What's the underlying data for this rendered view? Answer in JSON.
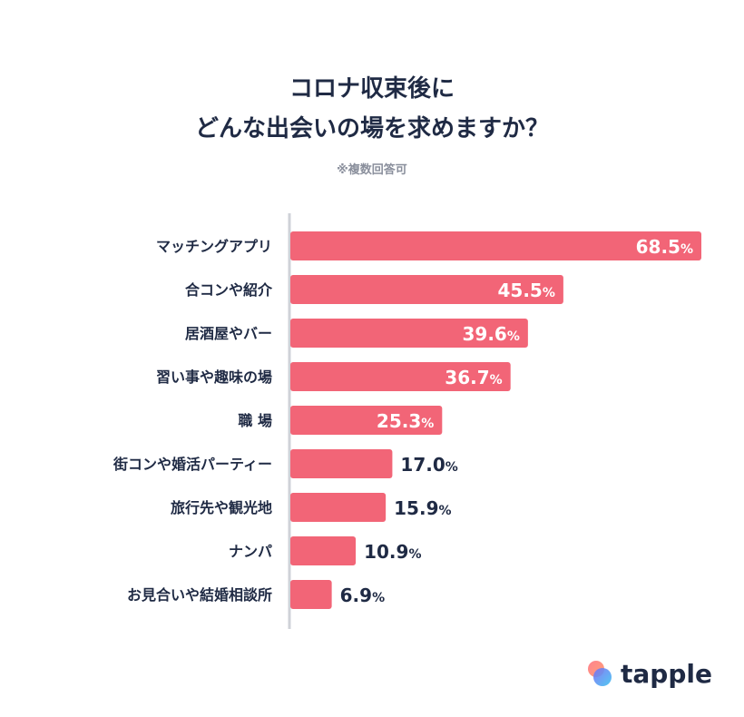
{
  "title_line1": "コロナ収束後に",
  "title_line2": "どんな出会いの場を求めますか？",
  "note": "※複数回答可",
  "brand": {
    "name": "tapple"
  },
  "colors": {
    "bar": "#f26577",
    "text": "#1f2a44",
    "axis": "#cfd2d8"
  },
  "chart_data": {
    "type": "bar",
    "orientation": "horizontal",
    "unit": "%",
    "categories": [
      "マッチングアプリ",
      "合コンや紹介",
      "居酒屋やバー",
      "習い事や趣味の場",
      "職 場",
      "街コンや婚活パーティー",
      "旅行先や観光地",
      "ナンパ",
      "お見合いや結婚相談所"
    ],
    "values": [
      68.5,
      45.5,
      39.6,
      36.7,
      25.3,
      17.0,
      15.9,
      10.9,
      6.9
    ],
    "value_labels": [
      "68.5",
      "45.5",
      "39.6",
      "36.7",
      "25.3",
      "17.0",
      "15.9",
      "10.9",
      "6.9"
    ],
    "xlim": [
      0,
      68.5
    ],
    "grid": false
  }
}
